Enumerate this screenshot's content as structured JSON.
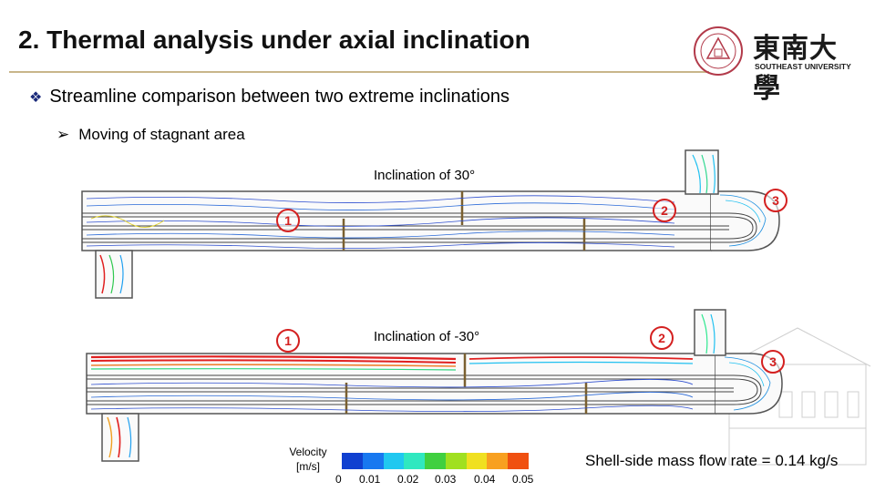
{
  "slide": {
    "title": "2. Thermal analysis under axial inclination",
    "bullet1": {
      "marker": "v",
      "text": "Streamline comparison between two extreme inclinations"
    },
    "bullet2": {
      "marker": "Ø",
      "text": "Moving of stagnant area"
    },
    "logo": {
      "text": "東南大學",
      "subtext": "SOUTHEAST UNIVERSITY"
    }
  },
  "figures": {
    "top": {
      "label": "Inclination of 30°",
      "markers": [
        "1",
        "2",
        "3"
      ]
    },
    "bottom": {
      "label": "Inclination of -30°",
      "markers": [
        "1",
        "2",
        "3"
      ]
    }
  },
  "legend": {
    "title_line1": "Velocity",
    "title_line2": "[m/s]",
    "ticks": [
      "0",
      "0.01",
      "0.02",
      "0.03",
      "0.04",
      "0.05"
    ],
    "colors": [
      "#1040d0",
      "#1878f0",
      "#20c8f0",
      "#30e8c0",
      "#40d040",
      "#a0e020",
      "#f0e020",
      "#f8a020",
      "#f05010"
    ]
  },
  "note": "Shell-side mass flow rate = 0.14 kg/s",
  "accent": {
    "marker_red": "#d42020",
    "rule": "#c8b68a",
    "stagnant_red": "#e02020"
  }
}
